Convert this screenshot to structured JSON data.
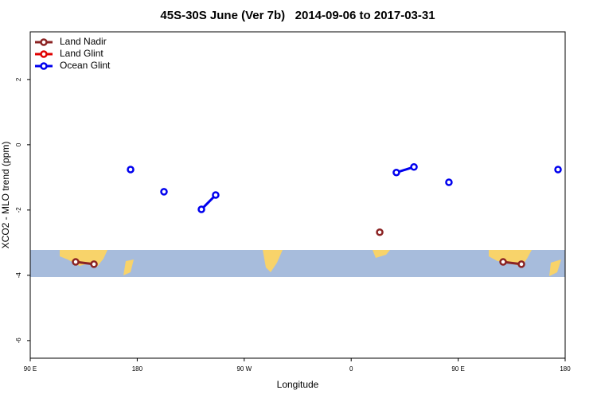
{
  "chart_data": {
    "type": "line",
    "title": "45S-30S June (Ver 7b)   2014-09-06 to 2017-03-31",
    "x_label": "Longitude",
    "y_label": "XCO2 - MLO trend (ppm)",
    "xlim": [
      90,
      540
    ],
    "ylim": [
      -6.54,
      3.46
    ],
    "xticks": [
      {
        "value": 90,
        "label": "90 E"
      },
      {
        "value": 180,
        "label": "180"
      },
      {
        "value": 270,
        "label": "90 W"
      },
      {
        "value": 360,
        "label": "0"
      },
      {
        "value": 450,
        "label": "90 E"
      },
      {
        "value": 540,
        "label": "180"
      }
    ],
    "yticks": [
      2,
      0,
      -2,
      -4,
      -6
    ],
    "legend": "upper left",
    "series": [
      {
        "name": "Land Nadir",
        "color": "#8b2323",
        "x": [
          128.2,
          143.6,
          null,
          384,
          null,
          487.8,
          503.2
        ],
        "values": [
          -3.59,
          -3.66,
          null,
          -2.68,
          null,
          -3.59,
          -3.66
        ]
      },
      {
        "name": "Land Glint",
        "color": "#e00000",
        "x": [],
        "values": []
      },
      {
        "name": "Ocean Glint",
        "color": "#0000ee",
        "x": [
          174.4,
          null,
          202.5,
          null,
          234,
          246,
          null,
          398,
          412.8,
          null,
          442.2,
          null,
          534
        ],
        "values": [
          -0.76,
          null,
          -1.44,
          null,
          -1.98,
          -1.54,
          null,
          -0.85,
          -0.68,
          null,
          -1.15,
          null,
          -0.76
        ]
      }
    ]
  }
}
